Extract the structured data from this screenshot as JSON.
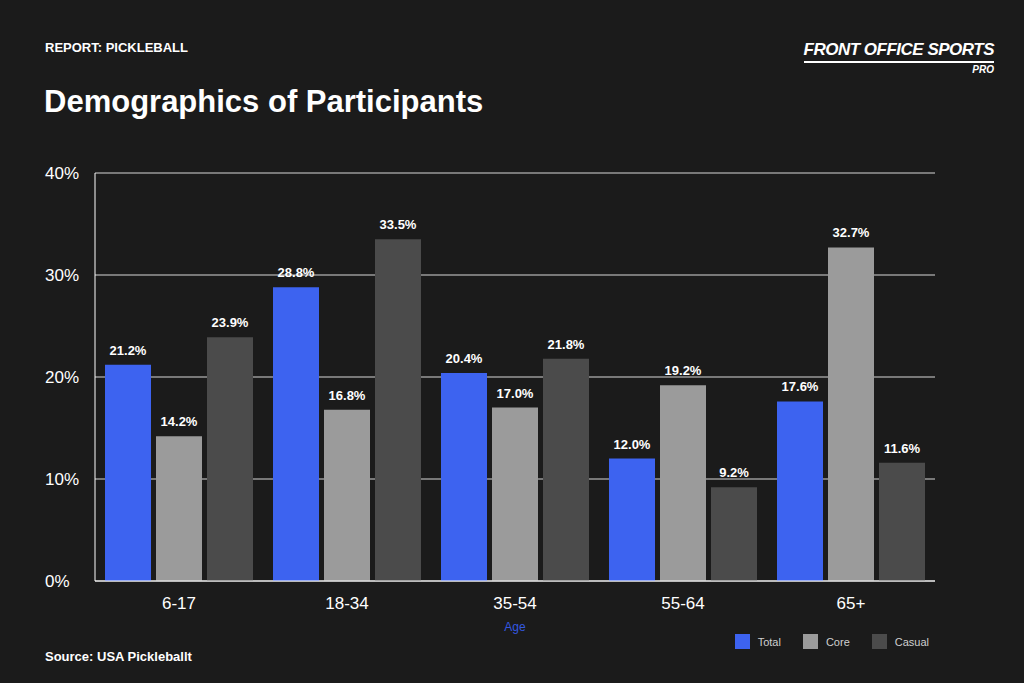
{
  "chart_data": {
    "type": "bar",
    "title": "Demographics of Participants",
    "subtitle": "REPORT: PICKLEBALL",
    "logo": {
      "name": "FRONT OFFICE SPORTS",
      "tag": "PRO"
    },
    "source": "Source: USA Pickleballt",
    "xlabel": "Age",
    "categories": [
      "6-17",
      "18-34",
      "35-54",
      "55-64",
      "65+"
    ],
    "series": [
      {
        "name": "Total",
        "color": "#3d63f0",
        "values": [
          21.2,
          28.8,
          20.4,
          12.0,
          17.6
        ],
        "value_labels": [
          "21.2%",
          "28.8%",
          "20.4%",
          "12.0%",
          "17.6%"
        ]
      },
      {
        "name": "Core",
        "color": "#9b9b9b",
        "values": [
          14.2,
          16.8,
          17.0,
          19.2,
          32.7
        ],
        "value_labels": [
          "14.2%",
          "16.8%",
          "17.0%",
          "19.2%",
          "32.7%"
        ]
      },
      {
        "name": "Casual",
        "color": "#4b4b4b",
        "values": [
          23.9,
          33.5,
          21.8,
          9.2,
          11.6
        ],
        "value_labels": [
          "23.9%",
          "33.5%",
          "21.8%",
          "9.2%",
          "11.6%"
        ]
      }
    ],
    "ylim": [
      0,
      40
    ],
    "yticks": [
      {
        "value": 0,
        "label": "0%"
      },
      {
        "value": 10,
        "label": "10%"
      },
      {
        "value": 20,
        "label": "20%"
      },
      {
        "value": 30,
        "label": "30%"
      },
      {
        "value": 40,
        "label": "40%"
      }
    ],
    "grid": true,
    "data_labels": true,
    "legend": "bottom right"
  }
}
